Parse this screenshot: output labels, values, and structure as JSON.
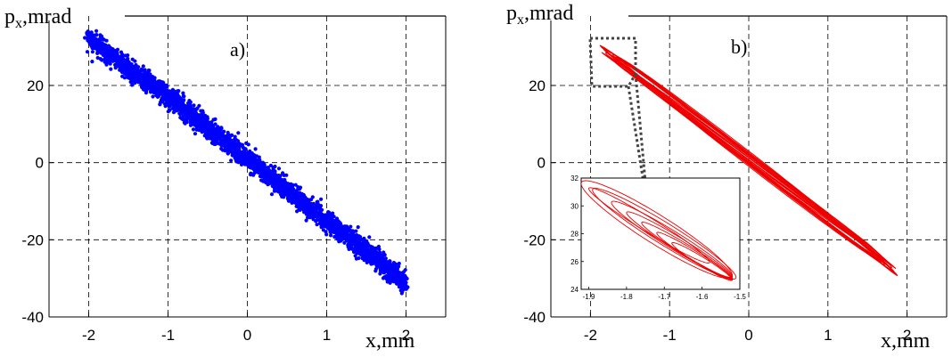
{
  "chart_data": [
    {
      "type": "scatter",
      "panel_label": "a)",
      "ylabel_main": "p",
      "ylabel_sub": "x",
      "ylabel_rest": ",mrad",
      "xlabel": "x,mm",
      "xlim": [
        -2.5,
        2.5
      ],
      "ylim": [
        -40,
        38
      ],
      "xticks": [
        "-2",
        "-1",
        "0",
        "1",
        "2"
      ],
      "yticks": [
        "-40",
        "-20",
        "0",
        "20"
      ],
      "xtick_values": [
        -2,
        -1,
        0,
        1,
        2
      ],
      "ytick_values": [
        -40,
        -20,
        0,
        20
      ],
      "grid": true,
      "color": "#0000ff",
      "series": [
        {
          "values": [
            [
              -2,
              32
            ],
            [
              -1.5,
              24.5
            ],
            [
              -1,
              17
            ],
            [
              -0.5,
              9
            ],
            [
              0,
              1
            ],
            [
              0.5,
              -7
            ],
            [
              1,
              -15
            ],
            [
              1.5,
              -23
            ],
            [
              2,
              -31
            ]
          ]
        }
      ]
    },
    {
      "type": "line",
      "panel_label": "b)",
      "ylabel_main": "p",
      "ylabel_sub": "x",
      "ylabel_rest": ",mrad",
      "xlabel": "x,mm",
      "xlim": [
        -2.5,
        2.5
      ],
      "ylim": [
        -40,
        38
      ],
      "xticks": [
        "-2",
        "-1",
        "0",
        "1",
        "2"
      ],
      "yticks": [
        "-40",
        "-20",
        "0",
        "20"
      ],
      "xtick_values": [
        -2,
        -1,
        0,
        1,
        2
      ],
      "ytick_values": [
        -40,
        -20,
        0,
        20
      ],
      "grid": true,
      "color": "#ee0000",
      "series": [
        {
          "values": [
            [
              -1.9,
              31
            ],
            [
              -1.5,
              25
            ],
            [
              -1,
              17
            ],
            [
              -0.5,
              9
            ],
            [
              0,
              1
            ],
            [
              0.5,
              -7
            ],
            [
              1,
              -15
            ],
            [
              1.5,
              -23
            ],
            [
              1.9,
              -30
            ]
          ]
        }
      ],
      "inset": {
        "xlim": [
          -1.92,
          -1.5
        ],
        "ylim": [
          24,
          32
        ],
        "xticks": [
          "-1.9",
          "-1.8",
          "-1.7",
          "-1.6",
          "-1.5"
        ],
        "yticks": [
          "24",
          "26",
          "28",
          "30",
          "32"
        ],
        "xtick_values": [
          -1.9,
          -1.8,
          -1.7,
          -1.6,
          -1.5
        ],
        "ytick_values": [
          24,
          26,
          28,
          30,
          32
        ],
        "grid": false,
        "zoom_region": {
          "x": [
            -1.95,
            -1.55
          ],
          "y": [
            27,
            33
          ]
        }
      }
    }
  ]
}
